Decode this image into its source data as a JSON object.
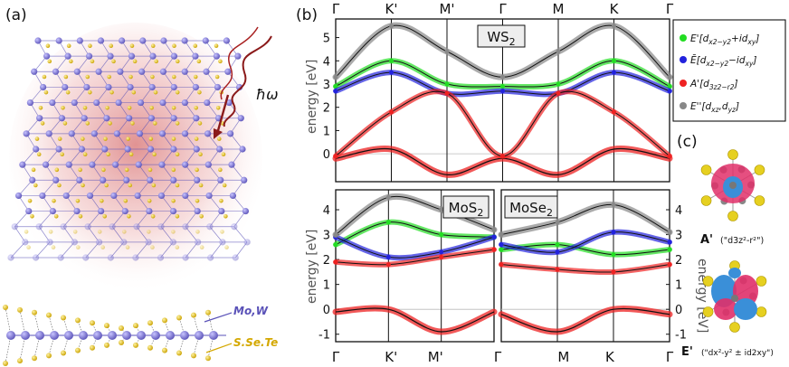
{
  "panel_a": {
    "tag": "(a)",
    "photon_label": "ħω",
    "metal_label": "Mo,W",
    "chalcogen_label": "S.Se.Te",
    "colors": {
      "metal": "#6b63c7",
      "chalcogen": "#e8c21a",
      "glow": "#d04040",
      "photon": "#8b1a1a"
    }
  },
  "panel_b": {
    "tag": "(b)",
    "ylabel_energy": "energy",
    "ylabel_unit": "[eV]",
    "top_kpath": [
      "Γ",
      "K'",
      "M'",
      "Γ",
      "M",
      "K",
      "Γ"
    ],
    "bottom_kpath": [
      "Γ",
      "K'",
      "M'",
      "Γ",
      "M",
      "K",
      "Γ"
    ],
    "legend": [
      {
        "color": "#22dd22",
        "label": "E'[dx2−y2+idxy]"
      },
      {
        "color": "#2222dd",
        "label": "Ē[dx2−y2−idxy]"
      },
      {
        "color": "#ee2222",
        "label": "A'[d3z2−r2]"
      },
      {
        "color": "#888888",
        "label": "E''[dxz,dyz]"
      }
    ]
  },
  "panel_c": {
    "tag": "(c)",
    "orbital_A": "A'",
    "orbital_A_desc": "(\"d3z²-r²\")",
    "orbital_E": "E'",
    "orbital_E_desc": "(\"dx²-y² ± id2xy\")",
    "colors": {
      "lobe_pos": "#e0306a",
      "lobe_neg": "#3a8fd8",
      "ring": "#888888",
      "ligand": "#e6d020"
    }
  },
  "chart_data": [
    {
      "type": "line",
      "title": "WS2",
      "xlabel": "",
      "ylabel": "energy [eV]",
      "x_ticks": [
        "Γ",
        "K'",
        "M'",
        "Γ",
        "M",
        "K",
        "Γ"
      ],
      "y_ticks": [
        0,
        1,
        2,
        3,
        4,
        5
      ],
      "ylim": [
        -1.2,
        5.8
      ],
      "grid": false,
      "legend_placement": "right",
      "series": [
        {
          "name": "E'[dx2−y2+idxy]",
          "color": "#22dd22",
          "x": [
            "Γ",
            "K'",
            "M'",
            "Γ",
            "M",
            "K",
            "Γ"
          ],
          "y": [
            2.9,
            4.0,
            3.0,
            2.9,
            3.0,
            4.0,
            2.9
          ]
        },
        {
          "name": "Ē[dx2−y2−idxy]",
          "color": "#2222dd",
          "x": [
            "Γ",
            "K'",
            "M'",
            "Γ",
            "M",
            "K",
            "Γ"
          ],
          "y": [
            2.7,
            3.5,
            2.6,
            2.7,
            2.6,
            3.5,
            2.7
          ]
        },
        {
          "name": "A'[d3z2−r2]",
          "color": "#ee2222",
          "x": [
            "Γ",
            "K'",
            "M'",
            "Γ",
            "M",
            "K",
            "Γ"
          ],
          "y": [
            -0.1,
            1.8,
            2.6,
            -0.1,
            2.6,
            1.8,
            -0.1
          ]
        },
        {
          "name": "E''[dxz,dyz]",
          "color": "#888888",
          "x": [
            "Γ",
            "K'",
            "M'",
            "Γ",
            "M",
            "K",
            "Γ"
          ],
          "y": [
            3.3,
            5.5,
            4.4,
            3.3,
            4.4,
            5.5,
            3.3
          ]
        }
      ],
      "lower_band": {
        "x": [
          "Γ",
          "K'",
          "M'",
          "Γ",
          "M",
          "K",
          "Γ"
        ],
        "y": [
          -0.2,
          0.2,
          -0.9,
          -0.2,
          -0.9,
          0.2,
          -0.2
        ]
      }
    },
    {
      "type": "line",
      "title": "MoS2",
      "ylabel": "energy [eV]",
      "x_ticks": [
        "Γ",
        "K'",
        "M'",
        "Γ"
      ],
      "y_ticks": [
        -1,
        0,
        1,
        2,
        3,
        4
      ],
      "ylim": [
        -1.3,
        4.8
      ],
      "series": [
        {
          "name": "E'[dx2−y2+idxy]",
          "color": "#22dd22",
          "x": [
            "Γ",
            "K'",
            "M'",
            "Γ"
          ],
          "y": [
            2.6,
            3.5,
            3.0,
            2.9
          ]
        },
        {
          "name": "Ē[dx2−y2−idxy]",
          "color": "#2222dd",
          "x": [
            "Γ",
            "K'",
            "M'",
            "Γ"
          ],
          "y": [
            2.9,
            2.1,
            2.3,
            2.9
          ]
        },
        {
          "name": "A'[d3z2−r2]",
          "color": "#ee2222",
          "x": [
            "Γ",
            "K'",
            "M'",
            "Γ"
          ],
          "y": [
            1.9,
            1.8,
            2.1,
            2.4
          ]
        },
        {
          "name": "E''[dxz,dyz]",
          "color": "#888888",
          "x": [
            "Γ",
            "K'",
            "M'",
            "Γ"
          ],
          "y": [
            3.0,
            4.5,
            4.0,
            3.2
          ]
        }
      ],
      "lower_band": {
        "x": [
          "Γ",
          "K'",
          "M'",
          "Γ"
        ],
        "y": [
          -0.1,
          0.0,
          -0.9,
          -0.1
        ]
      }
    },
    {
      "type": "line",
      "title": "MoSe2",
      "x_ticks": [
        "Γ",
        "M",
        "K",
        "Γ"
      ],
      "y_ticks": [
        -1,
        0,
        1,
        2,
        3,
        4
      ],
      "ylim": [
        -1.3,
        4.8
      ],
      "series": [
        {
          "name": "E'[dx2−y2+idxy]",
          "color": "#22dd22",
          "x": [
            "Γ",
            "M",
            "K",
            "Γ"
          ],
          "y": [
            2.4,
            2.6,
            2.2,
            2.4
          ]
        },
        {
          "name": "Ē[dx2−y2−idxy]",
          "color": "#2222dd",
          "x": [
            "Γ",
            "M",
            "K",
            "Γ"
          ],
          "y": [
            2.6,
            2.3,
            3.1,
            2.7
          ]
        },
        {
          "name": "A'[d3z2−r2]",
          "color": "#ee2222",
          "x": [
            "Γ",
            "M",
            "K",
            "Γ"
          ],
          "y": [
            1.8,
            1.6,
            1.5,
            1.8
          ]
        },
        {
          "name": "E''[dxz,dyz]",
          "color": "#888888",
          "x": [
            "Γ",
            "M",
            "K",
            "Γ"
          ],
          "y": [
            3.0,
            3.5,
            4.2,
            3.1
          ]
        }
      ],
      "lower_band": {
        "x": [
          "Γ",
          "M",
          "K",
          "Γ"
        ],
        "y": [
          -0.2,
          -0.9,
          0.0,
          -0.2
        ]
      }
    }
  ]
}
